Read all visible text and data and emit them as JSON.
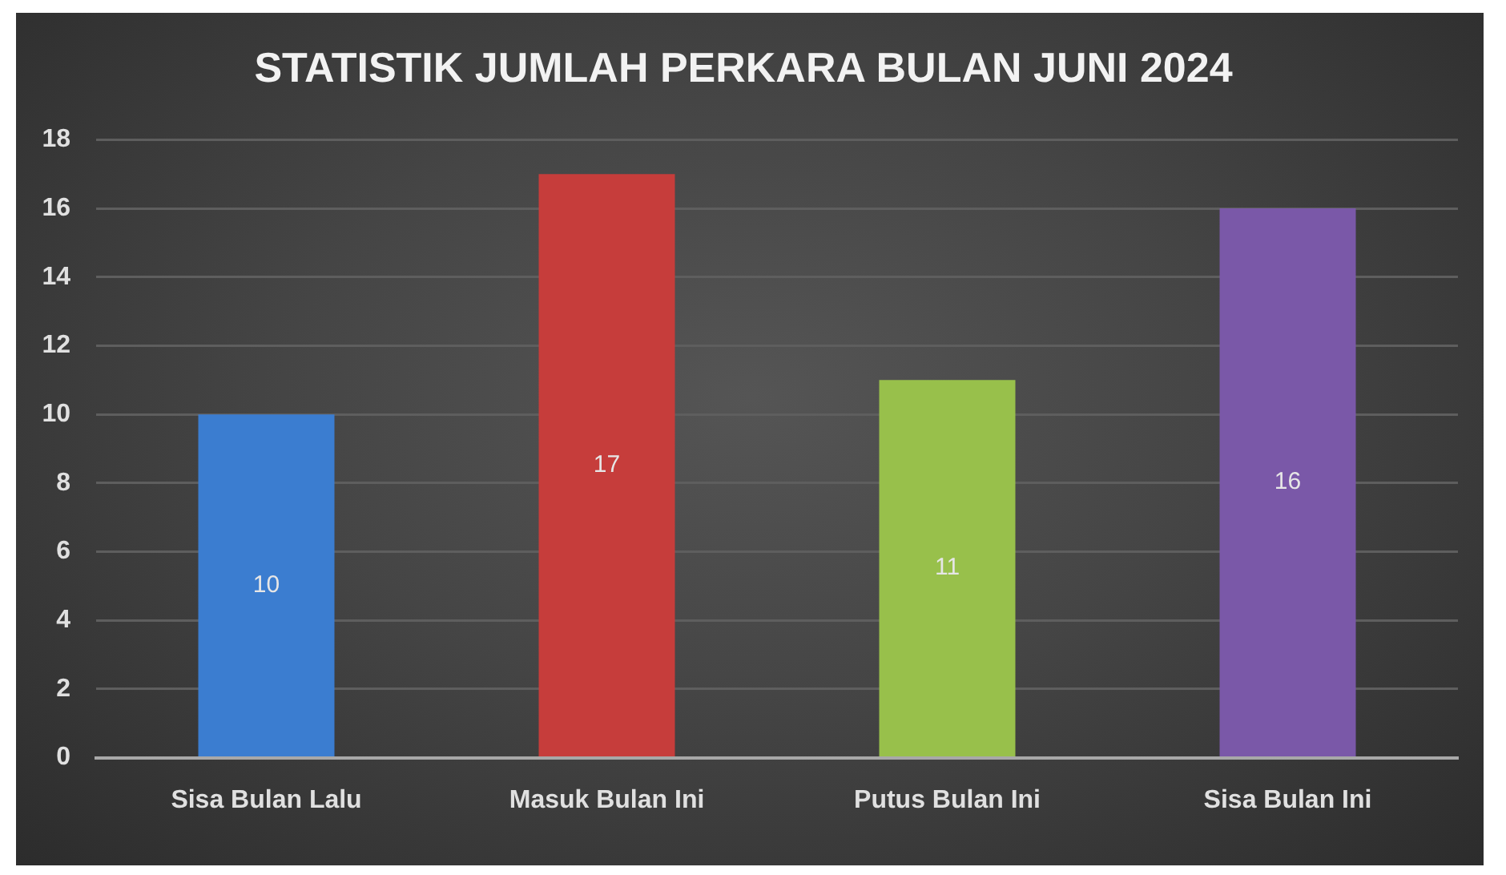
{
  "chart_data": {
    "type": "bar",
    "title": "STATISTIK JUMLAH PERKARA BULAN JUNI 2024",
    "categories": [
      "Sisa Bulan Lalu",
      "Masuk Bulan Ini",
      "Putus Bulan Ini",
      "Sisa Bulan Ini"
    ],
    "values": [
      10,
      17,
      11,
      16
    ],
    "colors": [
      "#3b7dd0",
      "#c63d3b",
      "#98c04b",
      "#7a58a8"
    ],
    "ylim": [
      0,
      18
    ],
    "yticks": [
      0,
      2,
      4,
      6,
      8,
      10,
      12,
      14,
      16,
      18
    ],
    "grid": "y",
    "data_labels": true
  }
}
